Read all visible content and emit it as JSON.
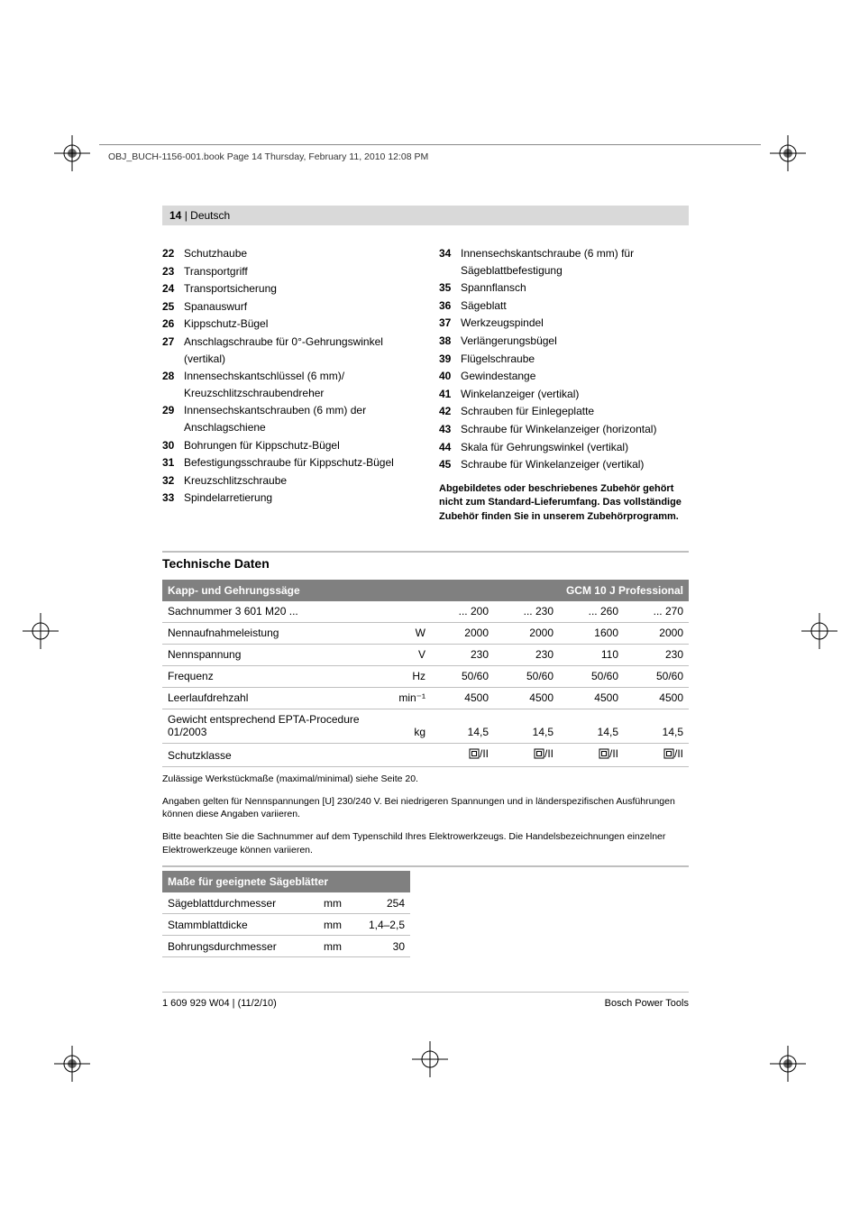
{
  "header": {
    "runhead": "OBJ_BUCH-1156-001.book  Page 14  Thursday, February 11, 2010  12:08 PM",
    "page_label": "14",
    "separator": " | ",
    "language": "Deutsch"
  },
  "parts_list": {
    "left": [
      {
        "n": "22",
        "t": "Schutzhaube"
      },
      {
        "n": "23",
        "t": "Transportgriff"
      },
      {
        "n": "24",
        "t": "Transportsicherung"
      },
      {
        "n": "25",
        "t": "Spanauswurf"
      },
      {
        "n": "26",
        "t": "Kippschutz-Bügel"
      },
      {
        "n": "27",
        "t": "Anschlagschraube für 0°-Gehrungswinkel (vertikal)"
      },
      {
        "n": "28",
        "t": "Innensechskantschlüssel (6 mm)/ Kreuzschlitzschraubendreher"
      },
      {
        "n": "29",
        "t": "Innensechskantschrauben (6 mm) der Anschlagschiene"
      },
      {
        "n": "30",
        "t": "Bohrungen für Kippschutz-Bügel"
      },
      {
        "n": "31",
        "t": "Befestigungsschraube für Kippschutz-Bügel"
      },
      {
        "n": "32",
        "t": "Kreuzschlitzschraube"
      },
      {
        "n": "33",
        "t": "Spindelarretierung"
      }
    ],
    "right": [
      {
        "n": "34",
        "t": "Innensechskantschraube (6 mm) für Sägeblattbefestigung"
      },
      {
        "n": "35",
        "t": "Spannflansch"
      },
      {
        "n": "36",
        "t": "Sägeblatt"
      },
      {
        "n": "37",
        "t": "Werkzeugspindel"
      },
      {
        "n": "38",
        "t": "Verlängerungsbügel"
      },
      {
        "n": "39",
        "t": "Flügelschraube"
      },
      {
        "n": "40",
        "t": "Gewindestange"
      },
      {
        "n": "41",
        "t": "Winkelanzeiger (vertikal)"
      },
      {
        "n": "42",
        "t": "Schrauben für Einlegeplatte"
      },
      {
        "n": "43",
        "t": "Schraube für Winkelanzeiger (horizontal)"
      },
      {
        "n": "44",
        "t": "Skala für Gehrungswinkel (vertikal)"
      },
      {
        "n": "45",
        "t": "Schraube für Winkelanzeiger (vertikal)"
      }
    ],
    "note": "Abgebildetes oder beschriebenes Zubehör gehört nicht zum Standard-Lieferumfang. Das vollständige Zubehör finden Sie in unserem Zubehörprogramm."
  },
  "tech": {
    "heading": "Technische Daten",
    "table1": {
      "header_left": "Kapp- und Gehrungssäge",
      "header_right": "GCM 10 J Professional",
      "rows": [
        {
          "label": "Sachnummer 3 601 M20 ...",
          "unit": "",
          "v": [
            "... 200",
            "... 230",
            "... 260",
            "... 270"
          ]
        },
        {
          "label": "Nennaufnahmeleistung",
          "unit": "W",
          "v": [
            "2000",
            "2000",
            "1600",
            "2000"
          ]
        },
        {
          "label": "Nennspannung",
          "unit": "V",
          "v": [
            "230",
            "230",
            "110",
            "230"
          ]
        },
        {
          "label": "Frequenz",
          "unit": "Hz",
          "v": [
            "50/60",
            "50/60",
            "50/60",
            "50/60"
          ]
        },
        {
          "label": "Leerlaufdrehzahl",
          "unit": "min⁻¹",
          "v": [
            "4500",
            "4500",
            "4500",
            "4500"
          ]
        },
        {
          "label": "Gewicht entsprechend EPTA-Procedure 01/2003",
          "unit": "kg",
          "v": [
            "14,5",
            "14,5",
            "14,5",
            "14,5"
          ]
        },
        {
          "label": "Schutzklasse",
          "unit": "",
          "v": [
            "□/II",
            "□/II",
            "□/II",
            "□/II"
          ],
          "sc": true
        }
      ],
      "footnotes": [
        "Zulässige Werkstückmaße (maximal/minimal) siehe Seite 20.",
        "Angaben gelten für Nennspannungen [U] 230/240 V. Bei niedrigeren Spannungen und in länderspezifischen Ausführungen können diese Angaben variieren.",
        "Bitte beachten Sie die Sachnummer auf dem Typenschild Ihres Elektrowerkzeugs. Die Handelsbezeichnungen einzelner Elektrowerkzeuge können variieren."
      ]
    },
    "table2": {
      "header": "Maße für geeignete Sägeblätter",
      "rows": [
        {
          "label": "Sägeblattdurchmesser",
          "unit": "mm",
          "v": "254"
        },
        {
          "label": "Stammblattdicke",
          "unit": "mm",
          "v": "1,4–2,5"
        },
        {
          "label": "Bohrungsdurchmesser",
          "unit": "mm",
          "v": "30"
        }
      ]
    }
  },
  "footer": {
    "left": "1 609 929 W04 | (11/2/10)",
    "right": "Bosch Power Tools"
  },
  "colors": {
    "header_bg": "#d9d9d9",
    "table_header_bg": "#808080",
    "table_header_fg": "#ffffff",
    "rule": "#bfbfbf"
  }
}
